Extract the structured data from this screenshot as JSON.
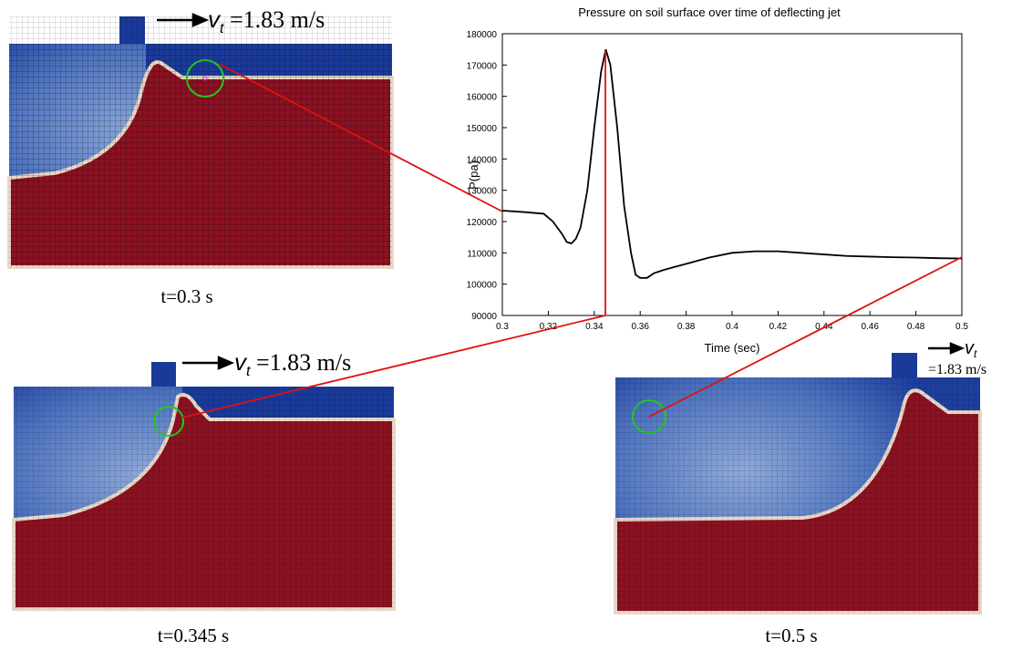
{
  "chart_data": {
    "type": "line",
    "title": "Pressure on soil surface over time of deflecting jet",
    "x_label": "Time (sec)",
    "y_label": "P(pa)",
    "color": "#000000",
    "x": [
      0.3,
      0.31,
      0.318,
      0.322,
      0.326,
      0.328,
      0.33,
      0.332,
      0.334,
      0.337,
      0.34,
      0.343,
      0.345,
      0.347,
      0.35,
      0.353,
      0.356,
      0.358,
      0.36,
      0.363,
      0.366,
      0.37,
      0.375,
      0.38,
      0.39,
      0.4,
      0.41,
      0.42,
      0.43,
      0.44,
      0.45,
      0.46,
      0.47,
      0.48,
      0.49,
      0.5
    ],
    "values": [
      123500,
      123000,
      122500,
      120000,
      116000,
      113500,
      113000,
      114500,
      118000,
      130000,
      150000,
      168000,
      175000,
      170000,
      150000,
      125000,
      110000,
      103000,
      102000,
      102000,
      103500,
      104500,
      105500,
      106500,
      108500,
      110000,
      110500,
      110500,
      110000,
      109500,
      109000,
      108800,
      108600,
      108500,
      108300,
      108200
    ],
    "xlim": [
      0.3,
      0.5
    ],
    "xticks": [
      0.3,
      0.32,
      0.34,
      0.36,
      0.38,
      0.4,
      0.42,
      0.44,
      0.46,
      0.48,
      0.5
    ],
    "ylim": [
      90000,
      180000
    ],
    "yticks": [
      90000,
      100000,
      110000,
      120000,
      130000,
      140000,
      150000,
      160000,
      170000,
      180000
    ]
  },
  "panels": [
    {
      "caption": "t=0.3 s",
      "velocity": {
        "symbol": "v",
        "subscript": "t",
        "value": " =1.83 m/s"
      }
    },
    {
      "caption": "t=0.345 s",
      "velocity": {
        "symbol": "v",
        "subscript": "t",
        "value": " =1.83 m/s"
      }
    },
    {
      "caption": "t=0.5 s",
      "velocity": {
        "symbol": "v",
        "subscript": "t",
        "value": "=1.83 m/s"
      }
    }
  ]
}
